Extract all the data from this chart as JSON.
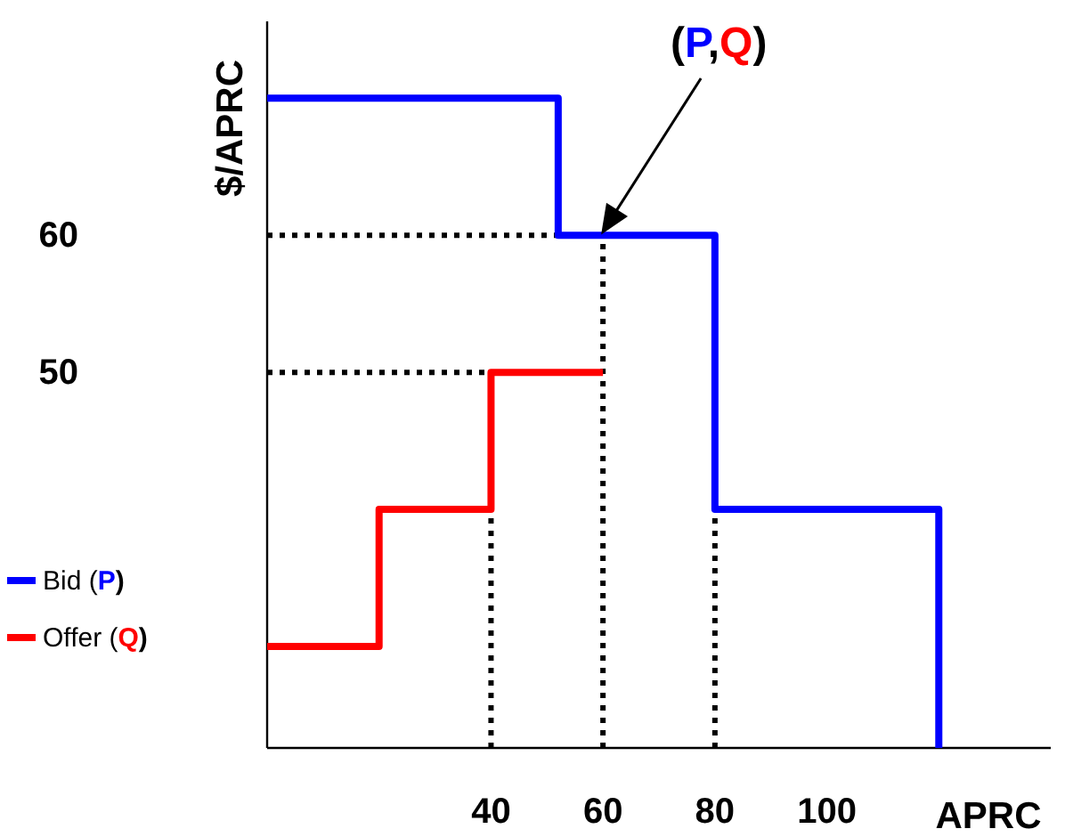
{
  "chart_data": {
    "type": "step",
    "ylabel": "$/APRC",
    "xlabel": "APRC",
    "xlim": [
      0,
      140
    ],
    "ylim": [
      22.6,
      75.6
    ],
    "xticks": [
      40,
      60,
      80,
      100
    ],
    "yticks": [
      60,
      50
    ],
    "series": [
      {
        "name": "Bid (P)",
        "color": "#0000ff",
        "x": [
          0,
          52,
          80,
          120
        ],
        "values": [
          70,
          60,
          40,
          22.6
        ]
      },
      {
        "name": "Offer (Q)",
        "color": "#ff0000",
        "x": [
          0,
          20,
          40,
          60
        ],
        "values": [
          30,
          40,
          50,
          50
        ]
      }
    ],
    "ref_lines": [
      {
        "axis": "x",
        "value": 40,
        "line_style": "dotted"
      },
      {
        "axis": "x",
        "value": 60,
        "line_style": "dotted"
      },
      {
        "axis": "x",
        "value": 80,
        "line_style": "dotted"
      },
      {
        "axis": "y",
        "value": 60,
        "line_style": "dotted"
      },
      {
        "axis": "y",
        "value": 50,
        "line_style": "dotted"
      }
    ],
    "annotations": [
      "(P,Q)"
    ],
    "legend": "left",
    "line_style": "solid"
  }
}
